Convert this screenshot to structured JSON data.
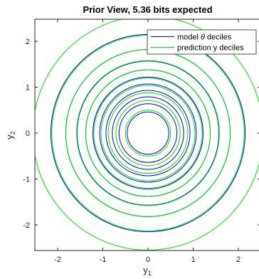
{
  "chart_data": {
    "type": "line",
    "title": "Prior View, 5.36 bits expected",
    "xlabel": "y",
    "xlabel_sub": "1",
    "ylabel": "y",
    "ylabel_sub": "2",
    "xlim": [
      -2.5,
      2.5
    ],
    "ylim": [
      -2.5,
      2.5
    ],
    "xticks": [
      -2,
      -1,
      0,
      1,
      2
    ],
    "yticks": [
      -2,
      -1,
      0,
      1,
      2
    ],
    "grid": false,
    "legend_position": "top-right",
    "series": [
      {
        "name_prefix": "model ",
        "name_symbol": "θ",
        "name_suffix": " deciles",
        "color": "#0000ff",
        "radii": [
          0.46,
          0.64,
          0.79,
          0.93,
          1.07,
          1.22,
          1.38,
          1.57,
          1.82,
          2.15
        ]
      },
      {
        "name": "prediction y deciles",
        "color": "#00e600",
        "radii": [
          0.5,
          0.71,
          0.88,
          1.04,
          1.2,
          1.38,
          1.58,
          1.82,
          2.13,
          2.55
        ]
      }
    ]
  }
}
